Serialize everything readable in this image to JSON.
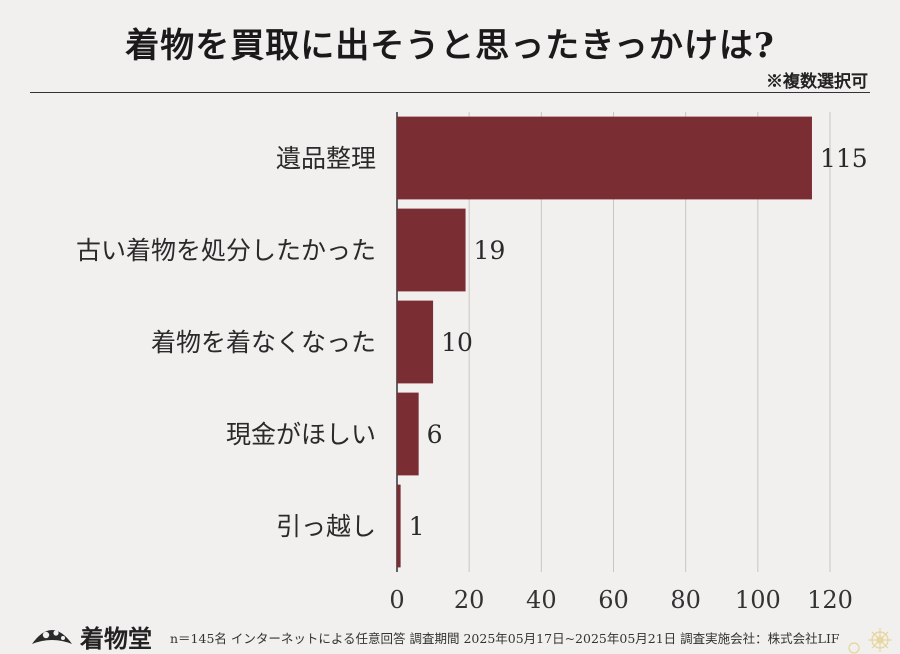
{
  "title": "着物を買取に出そうと思ったきっかけは?",
  "note": "※複数選択可",
  "footer": {
    "brand": "着物堂",
    "note": "n＝145名 インターネットによる任意回答 調査期間 2025年05月17日~2025年05月21日 調査実施会社：株式会社LIF"
  },
  "colors": {
    "bar": "#7a2d33",
    "grid": "#c9c6c2",
    "axis": "#333333"
  },
  "chart_data": {
    "type": "bar",
    "orientation": "horizontal",
    "categories": [
      "遺品整理",
      "古い着物を処分したかった",
      "着物を着なくなった",
      "現金がほしい",
      "引っ越し"
    ],
    "values": [
      115,
      19,
      10,
      6,
      1
    ],
    "xlim": [
      0,
      120
    ],
    "xticks": [
      0,
      20,
      40,
      60,
      80,
      100,
      120
    ],
    "grid": true
  }
}
